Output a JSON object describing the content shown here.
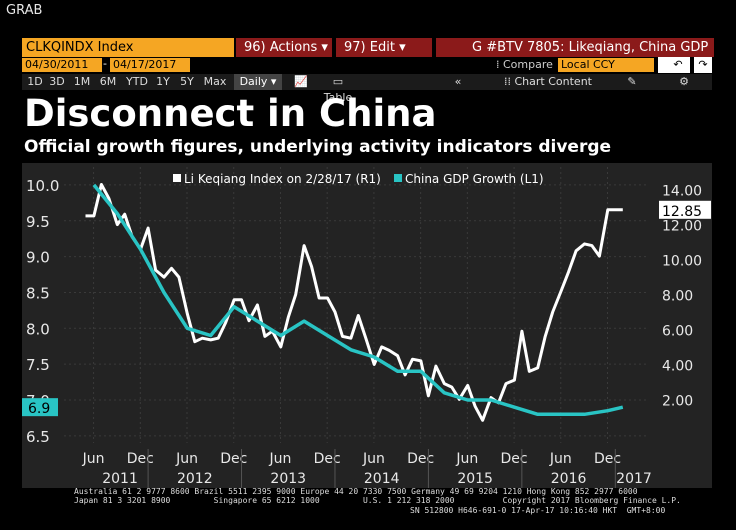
{
  "window": {
    "grab_label": "GRAB"
  },
  "toolbar": {
    "ticker": "CLKQINDX Index",
    "actions": "96) Actions",
    "edit": "97) Edit",
    "graph_title": "G #BTV 7805: Likeqiang, China GDP",
    "start_date": "04/30/2011",
    "end_date": "04/17/2017",
    "compare_label": "Compare",
    "currency": "Local CCY",
    "zoom_buttons": [
      "1D",
      "3D",
      "1M",
      "6M",
      "YTD",
      "1Y",
      "5Y",
      "Max"
    ],
    "period": "Daily",
    "table_label": "Table",
    "chart_content": "Chart Content"
  },
  "headline": {
    "title": "Disconnect in China",
    "subtitle": "Official growth figures, underlying activity indicators diverge"
  },
  "footer": {
    "line1": "Australia 61 2 9777 8600 Brazil 5511 2395 9000 Europe 44 20 7330 7500 Germany 49 69 9204 1210 Hong Kong 852 2977 6000",
    "line2": "Japan 81 3 3201 8900         Singapore 65 6212 1000         U.S. 1 212 318 2000          Copyright 2017 Bloomberg Finance L.P.",
    "line3": "SN 512800 H646-691-0 17-Apr-17 10:16:40 HKT  GMT+8:00"
  },
  "colors": {
    "bg": "#000000",
    "plot_bg": "#232323",
    "li_series": "#ffffff",
    "gdp_series": "#29c4c4",
    "accent_orange": "#f5a623",
    "accent_red": "#8b1a1a"
  },
  "chart_data": {
    "type": "line",
    "legend": [
      "Li Keqiang Index on 2/28/17 (R1)",
      "China GDP Growth (L1)"
    ],
    "x_ticks": [
      "Jun",
      "Dec",
      "Jun",
      "Dec",
      "Jun",
      "Dec",
      "Jun",
      "Dec",
      "Jun",
      "Dec",
      "Jun",
      "Dec"
    ],
    "year_labels": [
      "2011",
      "2012",
      "2013",
      "2014",
      "2015",
      "2016",
      "2017"
    ],
    "left_axis": {
      "ticks": [
        "6.5",
        "7.0",
        "7.5",
        "8.0",
        "8.5",
        "9.0",
        "9.5",
        "10.0"
      ],
      "range": [
        6.4,
        10.25
      ]
    },
    "right_axis": {
      "ticks": [
        "2.00",
        "4.00",
        "6.00",
        "8.00",
        "10.00",
        "12.00",
        "14.00"
      ],
      "range": [
        -0.5,
        15.3
      ]
    },
    "last_value_labels": {
      "gdp": "6.9",
      "li": "12.85"
    },
    "series": [
      {
        "name": "Li Keqiang Index on 2/28/17 (R1)",
        "axis": "right",
        "x": [
          2011.33,
          2011.42,
          2011.5,
          2011.58,
          2011.67,
          2011.75,
          2011.83,
          2011.92,
          2012.0,
          2012.08,
          2012.17,
          2012.25,
          2012.33,
          2012.42,
          2012.5,
          2012.58,
          2012.67,
          2012.75,
          2012.83,
          2012.92,
          2013.0,
          2013.08,
          2013.17,
          2013.25,
          2013.33,
          2013.42,
          2013.5,
          2013.58,
          2013.67,
          2013.75,
          2013.83,
          2013.92,
          2014.0,
          2014.08,
          2014.17,
          2014.25,
          2014.33,
          2014.42,
          2014.5,
          2014.58,
          2014.67,
          2014.75,
          2014.83,
          2014.92,
          2015.0,
          2015.08,
          2015.17,
          2015.25,
          2015.33,
          2015.42,
          2015.5,
          2015.58,
          2015.67,
          2015.75,
          2015.83,
          2015.92,
          2016.0,
          2016.08,
          2016.17,
          2016.25,
          2016.33,
          2016.42,
          2016.5,
          2016.58,
          2016.67,
          2016.75,
          2016.83,
          2016.92,
          2017.0,
          2017.08
        ],
        "values": [
          12.5,
          12.5,
          14.3,
          13.5,
          12.0,
          12.6,
          11.3,
          10.6,
          11.8,
          9.4,
          9.0,
          9.5,
          9.0,
          6.9,
          5.3,
          5.5,
          5.4,
          5.5,
          6.4,
          7.7,
          7.7,
          6.5,
          7.4,
          5.6,
          5.9,
          5.0,
          6.7,
          8.0,
          10.8,
          9.6,
          7.8,
          7.8,
          7.0,
          5.6,
          5.5,
          6.8,
          5.5,
          4.0,
          5.0,
          4.8,
          4.5,
          3.4,
          4.3,
          4.2,
          2.2,
          3.9,
          2.9,
          2.7,
          2.0,
          2.8,
          1.6,
          0.8,
          2.1,
          1.8,
          2.9,
          3.1,
          5.9,
          3.6,
          3.8,
          5.6,
          7.0,
          8.2,
          9.3,
          10.5,
          10.9,
          10.8,
          10.2,
          12.85,
          12.85,
          12.85
        ]
      },
      {
        "name": "China GDP Growth (L1)",
        "axis": "left",
        "x": [
          2011.42,
          2011.67,
          2011.92,
          2012.17,
          2012.42,
          2012.67,
          2012.92,
          2013.17,
          2013.42,
          2013.67,
          2013.92,
          2014.17,
          2014.42,
          2014.67,
          2014.92,
          2015.17,
          2015.42,
          2015.67,
          2015.92,
          2016.17,
          2016.42,
          2016.67,
          2016.92,
          2017.08
        ],
        "values": [
          10.0,
          9.6,
          9.1,
          8.5,
          8.0,
          7.9,
          8.3,
          8.1,
          7.9,
          8.1,
          7.9,
          7.7,
          7.6,
          7.4,
          7.4,
          7.1,
          7.0,
          7.0,
          6.9,
          6.8,
          6.8,
          6.8,
          6.85,
          6.9
        ]
      }
    ]
  }
}
